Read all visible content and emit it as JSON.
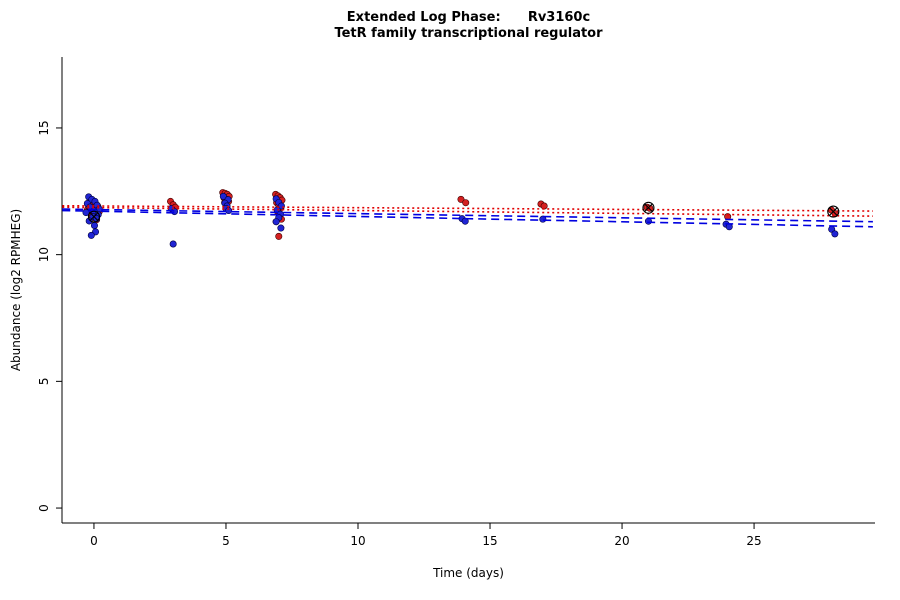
{
  "title": {
    "line1": "Extended Log Phase:      Rv3160c",
    "line2": "TetR family transcriptional regulator"
  },
  "chart_data": {
    "type": "scatter",
    "title": "Extended Log Phase:      Rv3160c",
    "subtitle": "TetR family transcriptional regulator",
    "xlabel": "Time  (days)",
    "ylabel": "Abundance  (log2 RPMHEG)",
    "xlim": [
      -1.21,
      29.58
    ],
    "ylim": [
      -0.59,
      17.8
    ],
    "x_ticks": [
      0,
      5,
      10,
      15,
      20,
      25
    ],
    "y_ticks": [
      0,
      5,
      10,
      15
    ],
    "grid": false,
    "legend": "none",
    "colors": {
      "red_point": "#d42020",
      "blue_point": "#2024d4",
      "red_line": "#e00000",
      "blue_line": "#0000e0",
      "highlight": "#000000",
      "axis": "#000000"
    },
    "series": [
      {
        "name": "red",
        "color_key": "red_point",
        "points": [
          [
            -0.15,
            12.05
          ],
          [
            0.0,
            11.97
          ],
          [
            0.15,
            11.9
          ],
          [
            -0.05,
            11.86
          ],
          [
            0.1,
            11.8
          ],
          [
            -0.25,
            11.76
          ],
          [
            0.2,
            11.7
          ],
          [
            0.05,
            11.62
          ],
          [
            -0.1,
            11.55
          ],
          [
            0.0,
            11.47
          ],
          [
            0.1,
            11.38
          ],
          [
            -0.2,
            11.9
          ],
          [
            0.05,
            11.75
          ],
          [
            2.9,
            12.1
          ],
          [
            3.0,
            11.97
          ],
          [
            3.08,
            11.87
          ],
          [
            2.95,
            11.8
          ],
          [
            4.88,
            12.45
          ],
          [
            4.97,
            12.42
          ],
          [
            5.05,
            12.38
          ],
          [
            5.12,
            12.3
          ],
          [
            4.92,
            12.25
          ],
          [
            5.02,
            12.18
          ],
          [
            5.1,
            12.1
          ],
          [
            4.95,
            12.05
          ],
          [
            6.88,
            12.38
          ],
          [
            6.97,
            12.32
          ],
          [
            7.05,
            12.25
          ],
          [
            7.12,
            12.15
          ],
          [
            6.92,
            12.05
          ],
          [
            7.0,
            11.95
          ],
          [
            7.08,
            11.85
          ],
          [
            6.95,
            11.7
          ],
          [
            7.03,
            11.55
          ],
          [
            7.1,
            11.4
          ],
          [
            6.9,
            11.3
          ],
          [
            7.0,
            10.72
          ],
          [
            13.9,
            12.18
          ],
          [
            14.08,
            12.05
          ],
          [
            16.93,
            12.0
          ],
          [
            17.05,
            11.92
          ],
          [
            20.95,
            11.87
          ],
          [
            21.05,
            11.83
          ],
          [
            24.0,
            11.5
          ],
          [
            27.93,
            11.76
          ],
          [
            28.07,
            11.62
          ]
        ]
      },
      {
        "name": "blue",
        "color_key": "blue_point",
        "points": [
          [
            -0.2,
            12.28
          ],
          [
            -0.08,
            12.18
          ],
          [
            0.04,
            12.1
          ],
          [
            -0.25,
            12.02
          ],
          [
            0.12,
            11.95
          ],
          [
            -0.15,
            11.88
          ],
          [
            0.2,
            11.8
          ],
          [
            0.0,
            11.73
          ],
          [
            -0.3,
            11.66
          ],
          [
            0.16,
            11.58
          ],
          [
            -0.04,
            11.5
          ],
          [
            0.1,
            11.42
          ],
          [
            -0.18,
            11.33
          ],
          [
            0.02,
            11.15
          ],
          [
            0.06,
            10.9
          ],
          [
            -0.1,
            10.76
          ],
          [
            2.93,
            11.82
          ],
          [
            3.05,
            11.7
          ],
          [
            3.0,
            10.42
          ],
          [
            4.9,
            12.3
          ],
          [
            5.08,
            12.17
          ],
          [
            4.96,
            12.03
          ],
          [
            5.04,
            11.92
          ],
          [
            5.0,
            11.82
          ],
          [
            5.1,
            11.74
          ],
          [
            6.9,
            12.2
          ],
          [
            7.0,
            12.06
          ],
          [
            7.1,
            11.92
          ],
          [
            6.94,
            11.76
          ],
          [
            7.06,
            11.6
          ],
          [
            7.0,
            11.46
          ],
          [
            6.9,
            11.3
          ],
          [
            7.08,
            11.05
          ],
          [
            13.94,
            11.42
          ],
          [
            14.06,
            11.32
          ],
          [
            17.0,
            11.4
          ],
          [
            21.0,
            11.32
          ],
          [
            23.94,
            11.2
          ],
          [
            24.06,
            11.1
          ],
          [
            27.94,
            11.0
          ],
          [
            28.06,
            10.82
          ]
        ]
      }
    ],
    "highlight_points": {
      "marker": "circle-x",
      "points": [
        [
          0.0,
          11.5
        ],
        [
          21.0,
          11.85
        ],
        [
          28.0,
          11.7
        ]
      ]
    },
    "trend_lines": [
      {
        "series": "red",
        "style": "dotted",
        "from": [
          -1.2,
          11.93
        ],
        "to": [
          29.5,
          11.72
        ]
      },
      {
        "series": "red",
        "style": "dotted",
        "from": [
          -1.2,
          11.87
        ],
        "to": [
          29.5,
          11.52
        ]
      },
      {
        "series": "blue",
        "style": "dashed",
        "from": [
          -1.2,
          11.8
        ],
        "to": [
          29.5,
          11.3
        ]
      },
      {
        "series": "blue",
        "style": "dashed",
        "from": [
          -1.2,
          11.74
        ],
        "to": [
          29.5,
          11.1
        ]
      }
    ]
  }
}
